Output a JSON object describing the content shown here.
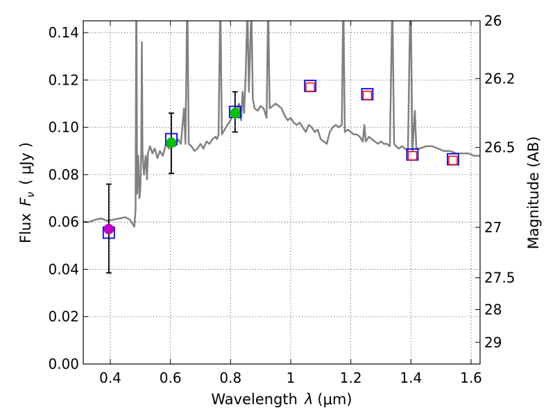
{
  "chart_data": {
    "type": "scatter",
    "xlabel_prefix": "Wavelength",
    "xlabel_var": "λ",
    "xlabel_unit": "(μm)",
    "ylabel_prefix": "Flux",
    "ylabel_var": "F",
    "ylabel_sub": "ν",
    "ylabel_unit": "( μJy )",
    "y2label": "Magnitude (AB)",
    "xlim": [
      0.31,
      1.63
    ],
    "ylim": [
      0.0,
      0.145
    ],
    "x_ticks": [
      0.4,
      0.6,
      0.8,
      1.0,
      1.2,
      1.4,
      1.6
    ],
    "x_tick_labels": [
      "0.4",
      "0.6",
      "0.8",
      "1",
      "1.2",
      "1.4",
      "1.6"
    ],
    "y_ticks": [
      0.0,
      0.02,
      0.04,
      0.06,
      0.08,
      0.1,
      0.12,
      0.14
    ],
    "y_tick_labels": [
      "0.00",
      "0.02",
      "0.04",
      "0.06",
      "0.08",
      "0.10",
      "0.12",
      "0.14"
    ],
    "mag_ticks": [
      26,
      26.2,
      26.5,
      27,
      27.5,
      28,
      29
    ],
    "mag_tick_labels": [
      "26",
      "26.2",
      "26.5",
      "27",
      "27.5",
      "28",
      "29"
    ],
    "grid": true,
    "colors": {
      "spectrum": "#808080",
      "model_box": "#0000ff",
      "upper_limit_box": "#ff0000",
      "green_obs": "#00c000",
      "magenta_obs": "#c000c0",
      "errorbar": "#000000"
    },
    "observed_points": [
      {
        "x": 0.395,
        "y": 0.057,
        "err": [
          0.0385,
          0.076
        ],
        "color": "magenta"
      },
      {
        "x": 0.603,
        "y": 0.0935,
        "err": [
          0.0805,
          0.106
        ],
        "color": "green"
      },
      {
        "x": 0.815,
        "y": 0.106,
        "err": [
          0.098,
          0.115
        ],
        "color": "green"
      }
    ],
    "model_points": [
      {
        "x": 0.395,
        "y": 0.0555
      },
      {
        "x": 0.603,
        "y": 0.095
      },
      {
        "x": 0.815,
        "y": 0.1065
      },
      {
        "x": 1.065,
        "y": 0.1175
      },
      {
        "x": 1.255,
        "y": 0.114
      },
      {
        "x": 1.405,
        "y": 0.0885
      },
      {
        "x": 1.54,
        "y": 0.0865
      }
    ],
    "upper_limit_points": [
      {
        "x": 1.065,
        "y": 0.117
      },
      {
        "x": 1.255,
        "y": 0.1135
      },
      {
        "x": 1.405,
        "y": 0.088
      },
      {
        "x": 1.54,
        "y": 0.086
      }
    ],
    "spectrum": [
      [
        0.31,
        0.06
      ],
      [
        0.33,
        0.06
      ],
      [
        0.35,
        0.061
      ],
      [
        0.37,
        0.0615
      ],
      [
        0.39,
        0.0605
      ],
      [
        0.41,
        0.061
      ],
      [
        0.43,
        0.0615
      ],
      [
        0.45,
        0.062
      ],
      [
        0.465,
        0.061
      ],
      [
        0.475,
        0.059
      ],
      [
        0.48,
        0.058
      ],
      [
        0.484,
        0.065
      ],
      [
        0.486,
        0.145
      ],
      [
        0.487,
        0.145
      ],
      [
        0.489,
        0.072
      ],
      [
        0.493,
        0.088
      ],
      [
        0.497,
        0.07
      ],
      [
        0.5,
        0.074
      ],
      [
        0.503,
        0.09
      ],
      [
        0.505,
        0.136
      ],
      [
        0.507,
        0.09
      ],
      [
        0.512,
        0.08
      ],
      [
        0.518,
        0.088
      ],
      [
        0.522,
        0.078
      ],
      [
        0.525,
        0.089
      ],
      [
        0.532,
        0.092
      ],
      [
        0.54,
        0.089
      ],
      [
        0.548,
        0.091
      ],
      [
        0.557,
        0.087
      ],
      [
        0.565,
        0.09
      ],
      [
        0.575,
        0.088
      ],
      [
        0.585,
        0.093
      ],
      [
        0.595,
        0.091
      ],
      [
        0.605,
        0.094
      ],
      [
        0.615,
        0.092
      ],
      [
        0.625,
        0.095
      ],
      [
        0.635,
        0.093
      ],
      [
        0.645,
        0.108
      ],
      [
        0.65,
        0.093
      ],
      [
        0.655,
        0.145
      ],
      [
        0.657,
        0.145
      ],
      [
        0.661,
        0.093
      ],
      [
        0.67,
        0.092
      ],
      [
        0.68,
        0.09
      ],
      [
        0.69,
        0.091
      ],
      [
        0.7,
        0.093
      ],
      [
        0.71,
        0.091
      ],
      [
        0.72,
        0.094
      ],
      [
        0.73,
        0.093
      ],
      [
        0.74,
        0.095
      ],
      [
        0.75,
        0.096
      ],
      [
        0.755,
        0.095
      ],
      [
        0.76,
        0.097
      ],
      [
        0.765,
        0.145
      ],
      [
        0.767,
        0.145
      ],
      [
        0.771,
        0.097
      ],
      [
        0.78,
        0.099
      ],
      [
        0.79,
        0.101
      ],
      [
        0.8,
        0.103
      ],
      [
        0.81,
        0.106
      ],
      [
        0.82,
        0.107
      ],
      [
        0.828,
        0.11
      ],
      [
        0.835,
        0.103
      ],
      [
        0.84,
        0.115
      ],
      [
        0.845,
        0.106
      ],
      [
        0.85,
        0.121
      ],
      [
        0.855,
        0.145
      ],
      [
        0.857,
        0.145
      ],
      [
        0.861,
        0.115
      ],
      [
        0.868,
        0.145
      ],
      [
        0.87,
        0.145
      ],
      [
        0.874,
        0.112
      ],
      [
        0.88,
        0.108
      ],
      [
        0.89,
        0.107
      ],
      [
        0.9,
        0.109
      ],
      [
        0.91,
        0.108
      ],
      [
        0.92,
        0.104
      ],
      [
        0.924,
        0.145
      ],
      [
        0.926,
        0.145
      ],
      [
        0.93,
        0.108
      ],
      [
        0.94,
        0.109
      ],
      [
        0.95,
        0.11
      ],
      [
        0.96,
        0.109
      ],
      [
        0.97,
        0.108
      ],
      [
        0.98,
        0.105
      ],
      [
        0.99,
        0.103
      ],
      [
        1.0,
        0.104
      ],
      [
        1.01,
        0.102
      ],
      [
        1.02,
        0.101
      ],
      [
        1.03,
        0.102
      ],
      [
        1.04,
        0.1
      ],
      [
        1.05,
        0.098
      ],
      [
        1.06,
        0.101
      ],
      [
        1.07,
        0.1
      ],
      [
        1.08,
        0.098
      ],
      [
        1.09,
        0.099
      ],
      [
        1.1,
        0.095
      ],
      [
        1.12,
        0.093
      ],
      [
        1.13,
        0.098
      ],
      [
        1.14,
        0.1
      ],
      [
        1.15,
        0.101
      ],
      [
        1.16,
        0.1
      ],
      [
        1.17,
        0.101
      ],
      [
        1.174,
        0.145
      ],
      [
        1.176,
        0.145
      ],
      [
        1.18,
        0.098
      ],
      [
        1.19,
        0.099
      ],
      [
        1.2,
        0.098
      ],
      [
        1.21,
        0.097
      ],
      [
        1.22,
        0.097
      ],
      [
        1.23,
        0.096
      ],
      [
        1.24,
        0.094
      ],
      [
        1.245,
        0.101
      ],
      [
        1.25,
        0.094
      ],
      [
        1.26,
        0.096
      ],
      [
        1.27,
        0.095
      ],
      [
        1.28,
        0.094
      ],
      [
        1.29,
        0.093
      ],
      [
        1.3,
        0.094
      ],
      [
        1.31,
        0.093
      ],
      [
        1.32,
        0.093
      ],
      [
        1.33,
        0.092
      ],
      [
        1.337,
        0.145
      ],
      [
        1.339,
        0.145
      ],
      [
        1.344,
        0.093
      ],
      [
        1.35,
        0.092
      ],
      [
        1.36,
        0.091
      ],
      [
        1.37,
        0.092
      ],
      [
        1.38,
        0.091
      ],
      [
        1.39,
        0.09
      ],
      [
        1.397,
        0.145
      ],
      [
        1.4,
        0.145
      ],
      [
        1.405,
        0.09
      ],
      [
        1.413,
        0.107
      ],
      [
        1.418,
        0.091
      ],
      [
        1.43,
        0.091
      ],
      [
        1.45,
        0.092
      ],
      [
        1.47,
        0.092
      ],
      [
        1.49,
        0.091
      ],
      [
        1.51,
        0.09
      ],
      [
        1.53,
        0.09
      ],
      [
        1.55,
        0.089
      ],
      [
        1.57,
        0.089
      ],
      [
        1.59,
        0.089
      ],
      [
        1.61,
        0.088
      ],
      [
        1.63,
        0.088
      ]
    ]
  }
}
